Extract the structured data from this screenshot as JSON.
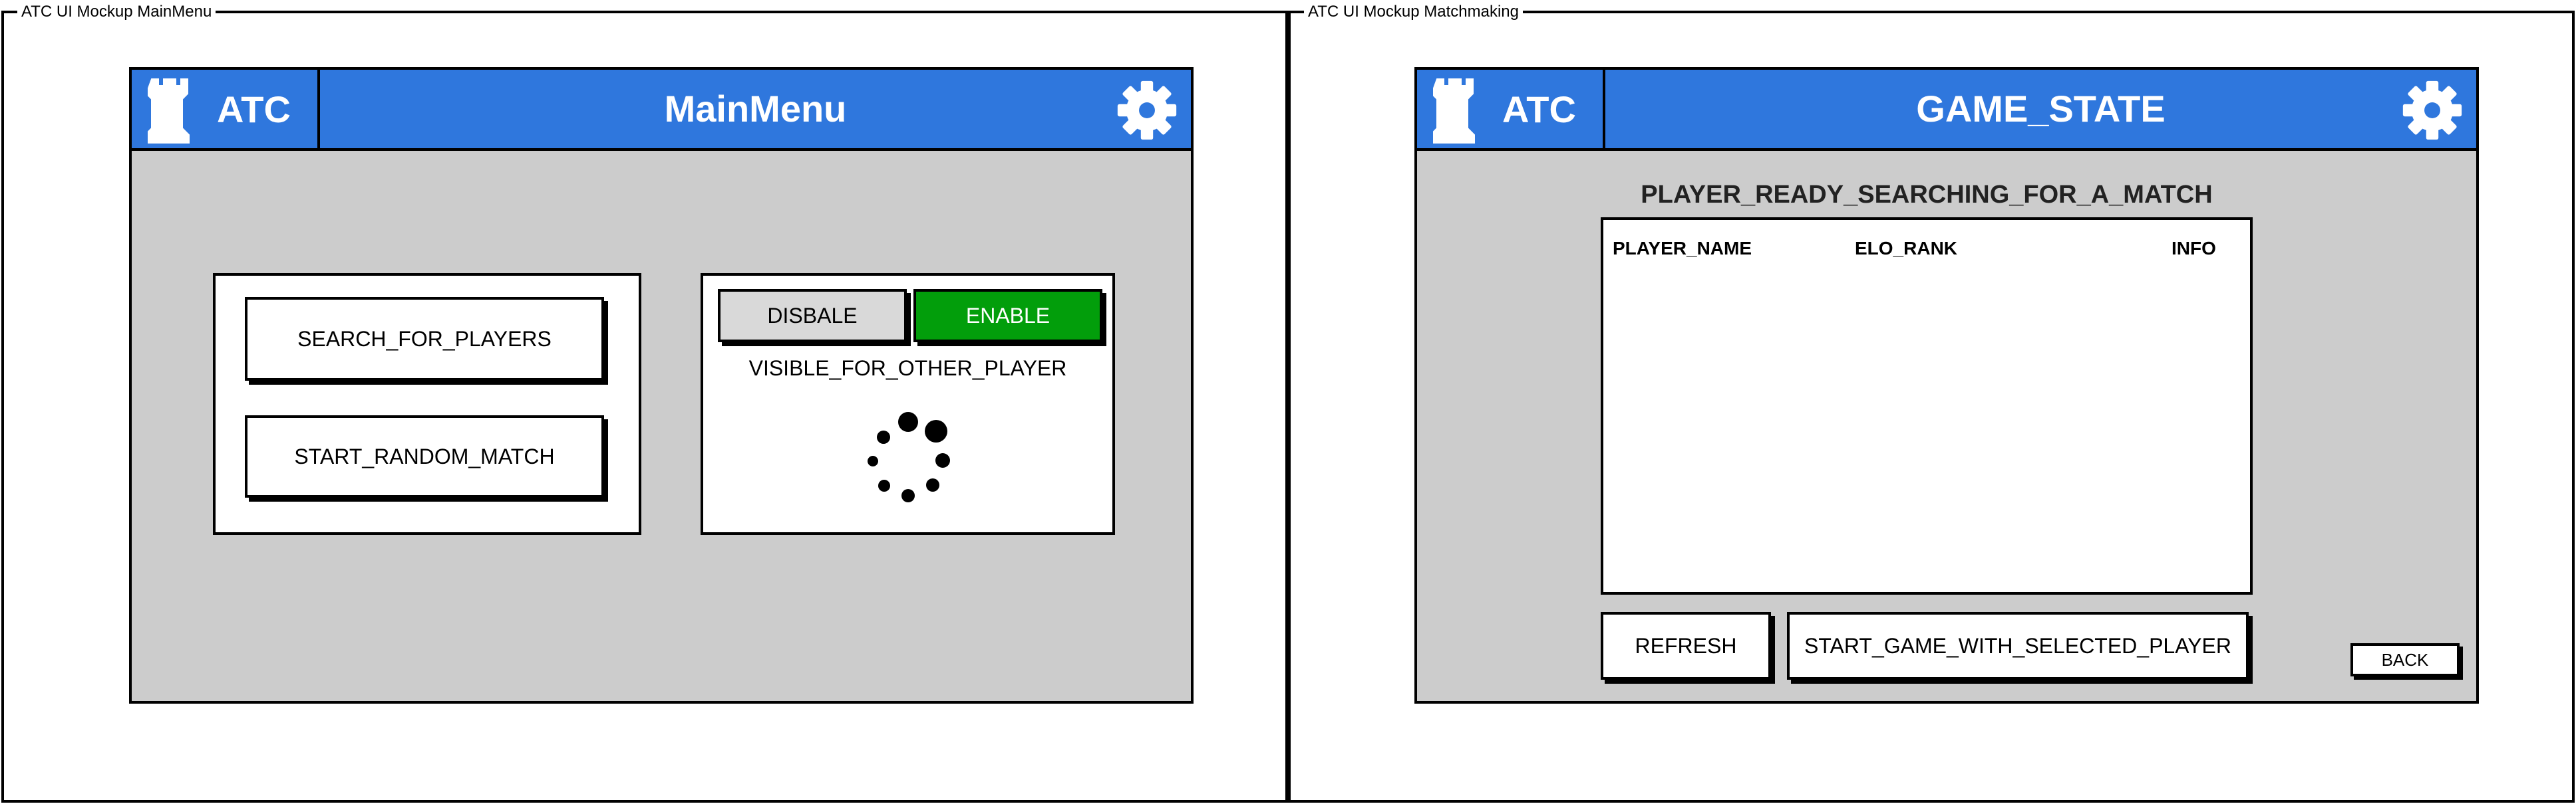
{
  "main_menu_mockup": {
    "frame_title": "ATC UI Mockup MainMenu",
    "logo": "ATC",
    "title": "MainMenu",
    "buttons": {
      "search_players": "SEARCH_FOR_PLAYERS",
      "start_random_match": "START_RANDOM_MATCH"
    },
    "visibility": {
      "disable_label": "DISBALE",
      "enable_label": "ENABLE",
      "caption": "VISIBLE_FOR_OTHER_PLAYER"
    },
    "icons": [
      "rook-icon",
      "gear-icon",
      "loading-spinner-icon"
    ],
    "colors": {
      "header": "#2f77dd",
      "enable": "#029e0b",
      "background": "#cccccc"
    }
  },
  "matchmaking_mockup": {
    "frame_title": "ATC UI Mockup Matchmaking",
    "logo": "ATC",
    "title": "GAME_STATE",
    "status": "PLAYER_READY_SEARCHING_FOR_A_MATCH",
    "table": {
      "columns": [
        "PLAYER_NAME",
        "ELO_RANK",
        "INFO"
      ],
      "rows": []
    },
    "buttons": {
      "refresh": "REFRESH",
      "start_game": "START_GAME_WITH_SELECTED_PLAYER",
      "back": "BACK"
    },
    "icons": [
      "rook-icon",
      "gear-icon"
    ]
  }
}
